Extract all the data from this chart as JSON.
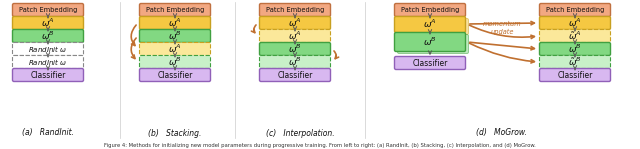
{
  "patch_embed_color": "#F2A882",
  "patch_embed_border": "#C07040",
  "omega_A_color": "#F5C842",
  "omega_A_border": "#C8A020",
  "omega_A_dashed_color": "#FBE89A",
  "omega_B_color": "#82D882",
  "omega_B_border": "#40A040",
  "omega_B_dashed_color": "#C8F0C8",
  "randinit_color": "#FFFFFF",
  "randinit_border": "#888888",
  "classifier_color": "#D8B8F0",
  "classifier_border": "#9060B8",
  "arrow_color": "#C07030",
  "black_arrow": "#555555",
  "background_color": "#FFFFFF",
  "subfig_labels": [
    "(a)   RandInit.",
    "(b)   Stacking.",
    "(c)   Interpolation.",
    "(d)   MoGrow."
  ],
  "momentum_text": "momentum\nupdate"
}
